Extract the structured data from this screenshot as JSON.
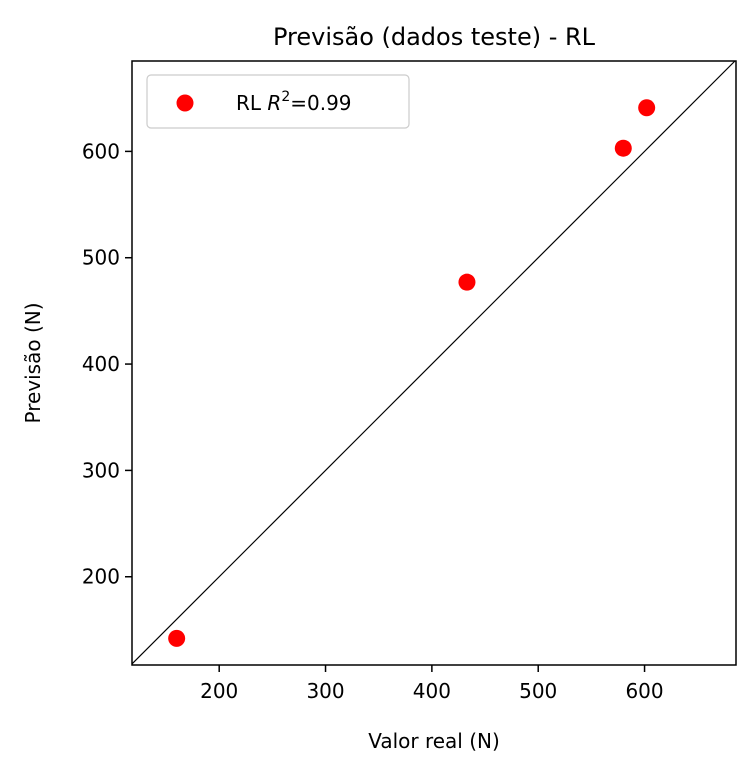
{
  "chart_data": {
    "type": "scatter",
    "title": "Previsão (dados teste) - RL",
    "xlabel": "Valor real (N)",
    "ylabel": "Previsão (N)",
    "xlim": [
      118,
      686
    ],
    "ylim": [
      117,
      685
    ],
    "xticks": [
      200,
      300,
      400,
      500,
      600
    ],
    "yticks": [
      200,
      300,
      400,
      500,
      600
    ],
    "grid": false,
    "reference_line": "y = x",
    "legend": {
      "position": "top-left",
      "label_prefix": "RL ",
      "label_var": "R",
      "label_exp": "2",
      "label_suffix": "=0.99"
    },
    "series": [
      {
        "color": "#ff0000",
        "points": [
          {
            "x": 160,
            "y": 142
          },
          {
            "x": 433,
            "y": 477
          },
          {
            "x": 580,
            "y": 603
          },
          {
            "x": 602,
            "y": 641
          }
        ]
      }
    ],
    "colors": {
      "points": "#ff0000",
      "axes": "#000000",
      "reference_line": "#000000"
    }
  }
}
